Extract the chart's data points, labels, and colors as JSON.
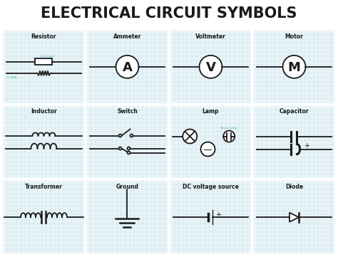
{
  "title": "ELECTRICAL CIRCUIT SYMBOLS",
  "title_fontsize": 15,
  "title_fontweight": "bold",
  "background_color": "#ffffff",
  "grid_color": "#c5dce8",
  "cell_bg": "#e8f4f8",
  "line_color": "#1a1a1a",
  "teal_color": "#3ab8a0",
  "border_color": "#ffffff",
  "symbols": [
    {
      "name": "Resistor",
      "row": 0,
      "col": 0
    },
    {
      "name": "Ammeter",
      "row": 0,
      "col": 1
    },
    {
      "name": "Voltmeter",
      "row": 0,
      "col": 2
    },
    {
      "name": "Motor",
      "row": 0,
      "col": 3
    },
    {
      "name": "Inductor",
      "row": 1,
      "col": 0
    },
    {
      "name": "Switch",
      "row": 1,
      "col": 1
    },
    {
      "name": "Lamp",
      "row": 1,
      "col": 2
    },
    {
      "name": "Capacitor",
      "row": 1,
      "col": 3
    },
    {
      "name": "Transformer",
      "row": 2,
      "col": 0
    },
    {
      "name": "Ground",
      "row": 2,
      "col": 1
    },
    {
      "name": "DC voltage source",
      "row": 2,
      "col": 2
    },
    {
      "name": "Diode",
      "row": 2,
      "col": 3
    }
  ]
}
